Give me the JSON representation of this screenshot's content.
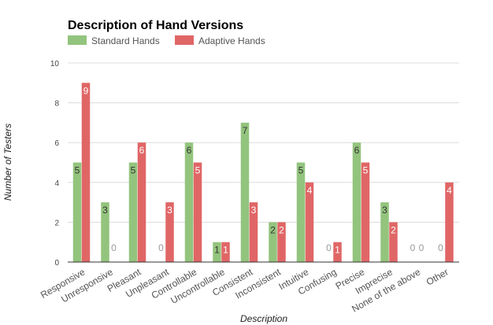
{
  "chart_data": {
    "type": "bar",
    "title": "Description of Hand Versions",
    "xlabel": "Description",
    "ylabel": "Number of Testers",
    "ylim": [
      0,
      10
    ],
    "yticks": [
      0,
      2,
      4,
      6,
      8,
      10
    ],
    "grid": true,
    "legend_position": "top-left",
    "categories": [
      "Responsive",
      "Unresponsive",
      "Pleasant",
      "Unpleasant",
      "Controllable",
      "Uncontrollable",
      "Consistent",
      "Inconsistent",
      "Intuitive",
      "Confusing",
      "Precise",
      "Imprecise",
      "None of the above",
      "Other"
    ],
    "series": [
      {
        "name": "Standard Hands",
        "color": "#93c47d",
        "values": [
          5,
          3,
          5,
          0,
          6,
          1,
          7,
          2,
          5,
          0,
          6,
          3,
          0,
          0
        ]
      },
      {
        "name": "Adaptive Hands",
        "color": "#e06666",
        "values": [
          9,
          0,
          6,
          3,
          5,
          1,
          3,
          2,
          4,
          1,
          5,
          2,
          0,
          4
        ]
      }
    ]
  }
}
